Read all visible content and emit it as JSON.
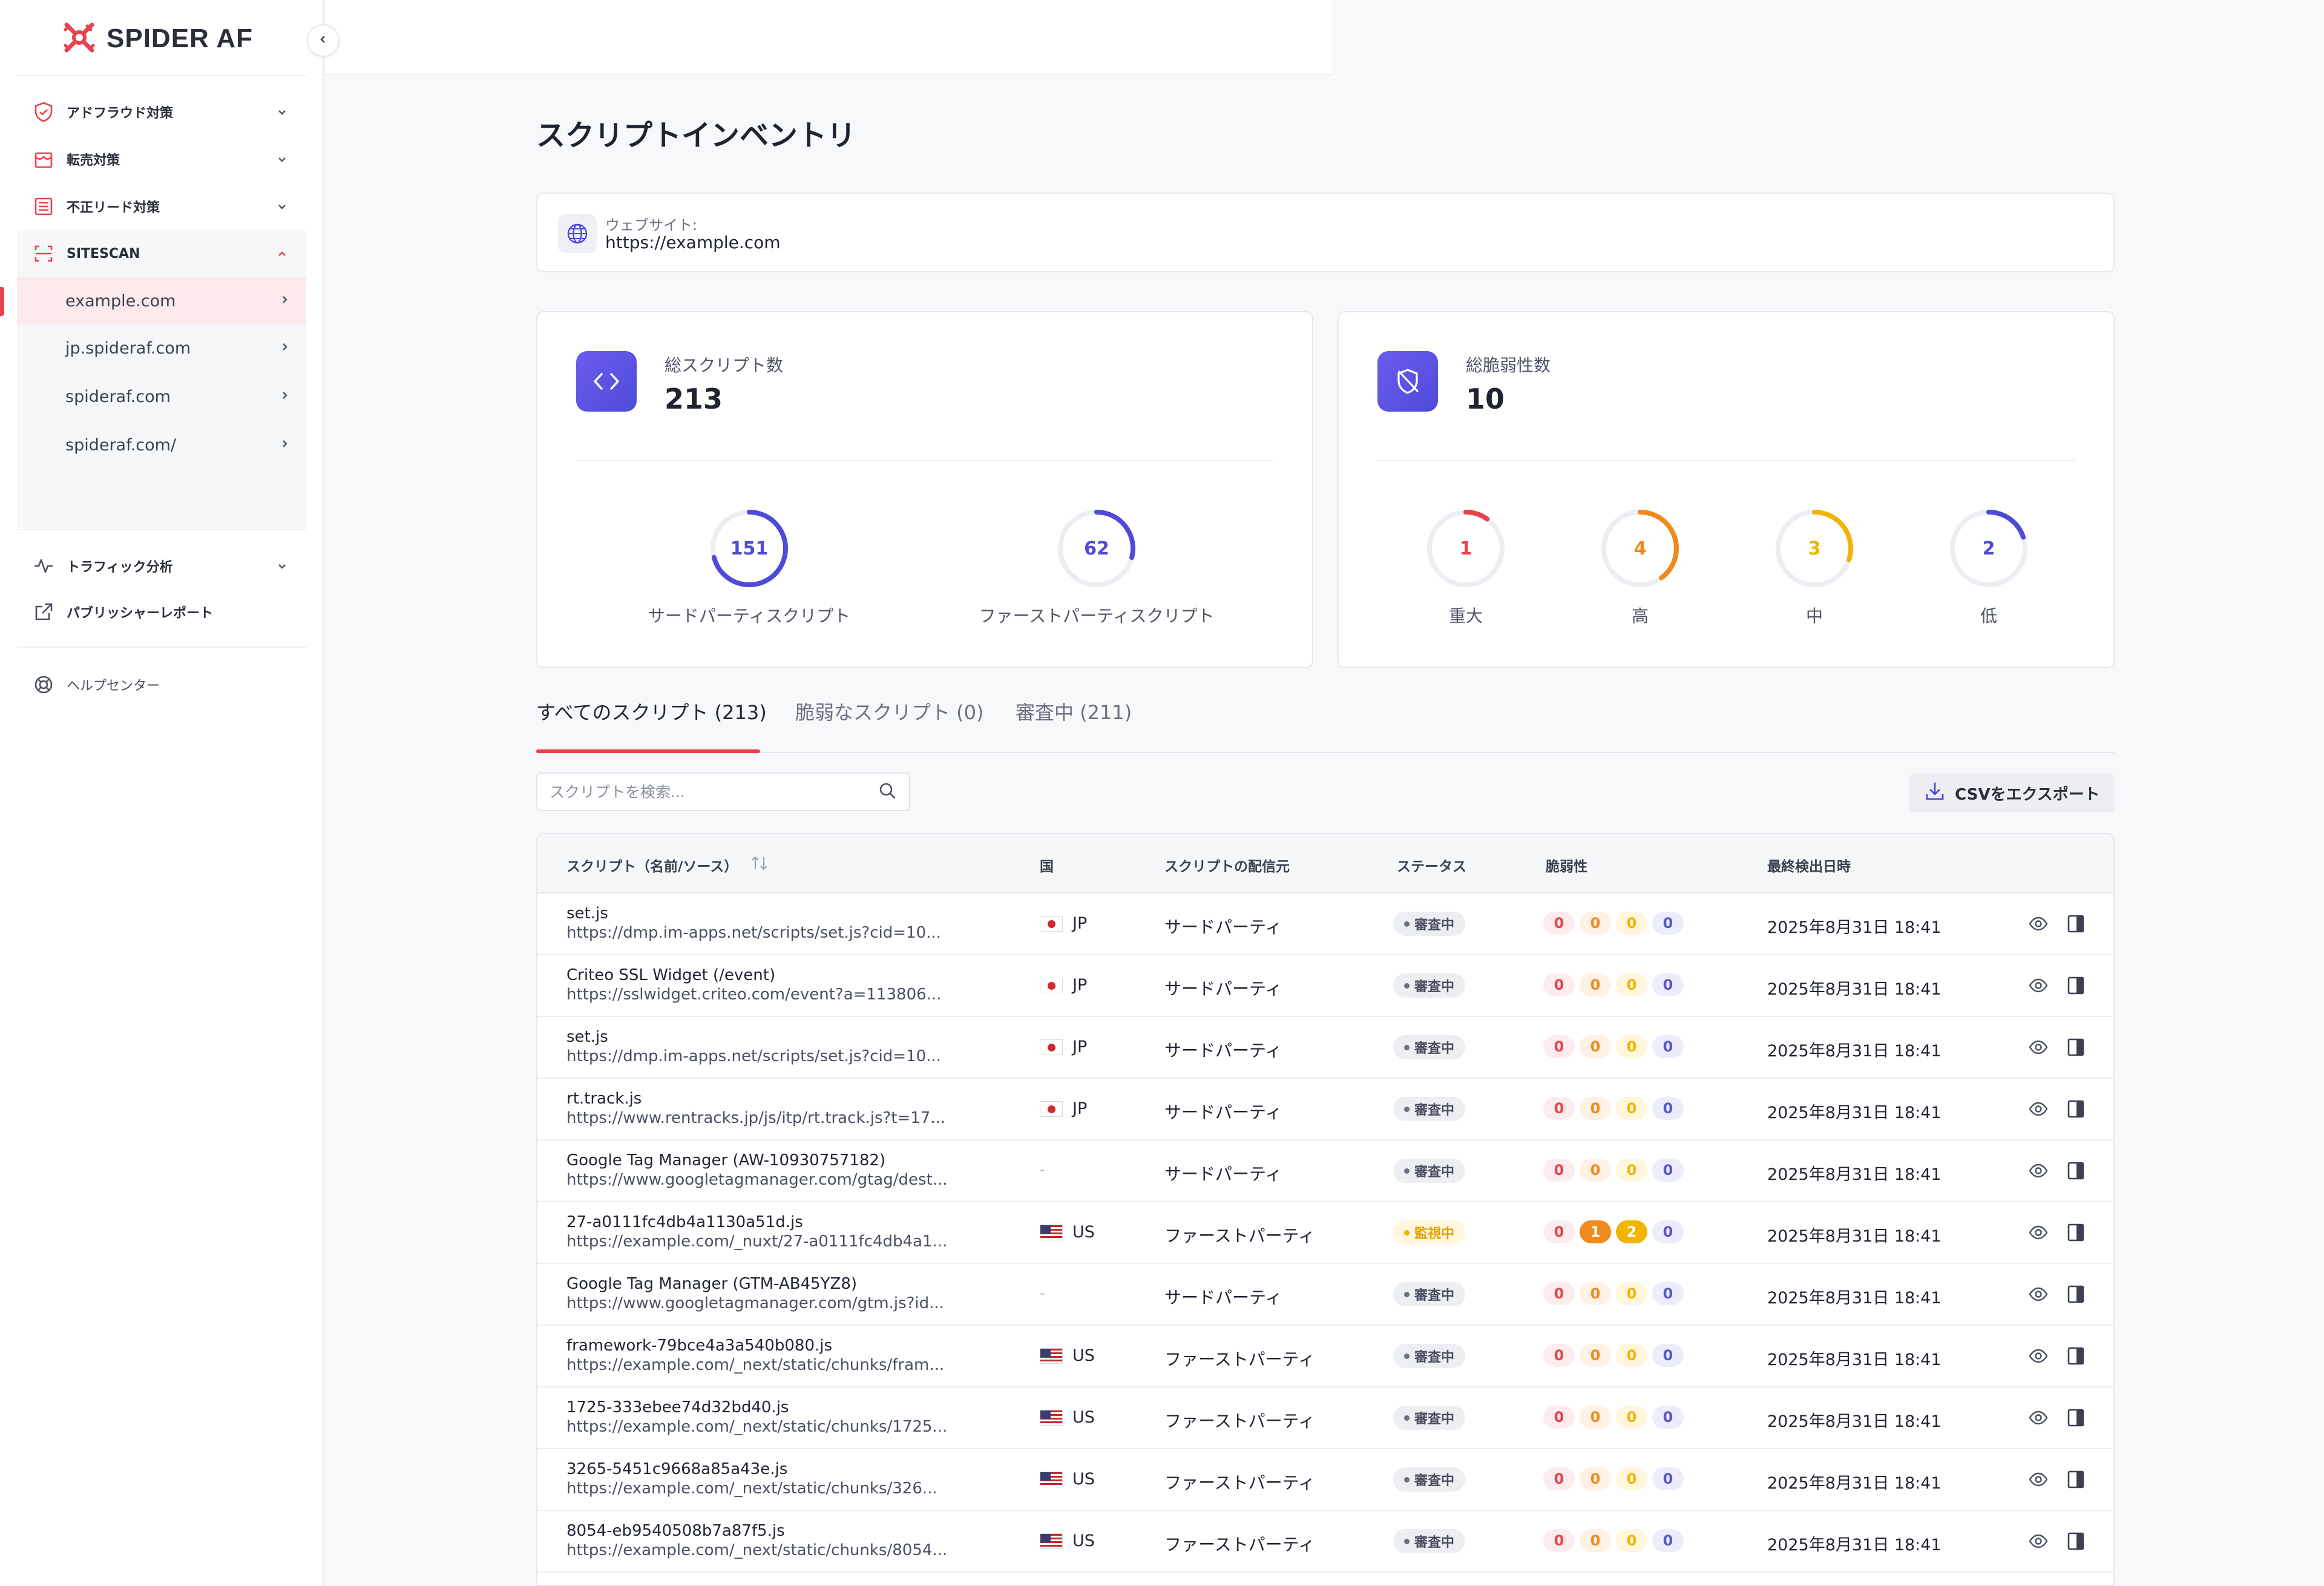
{
  "brand": {
    "name": "SPIDER AF",
    "color": "#e8434c"
  },
  "sidebar": {
    "groups": [
      {
        "label": "アドフラウド対策",
        "icon": "shield-icon"
      },
      {
        "label": "転売対策",
        "icon": "store-icon"
      },
      {
        "label": "不正リード対策",
        "icon": "form-icon"
      }
    ],
    "sitescan": {
      "label": "SITESCAN",
      "icon": "scan-icon",
      "items": [
        {
          "label": "example.com",
          "active": true
        },
        {
          "label": "jp.spideraf.com"
        },
        {
          "label": "spideraf.com"
        },
        {
          "label": "spideraf.com/"
        }
      ]
    },
    "traffic": {
      "label": "トラフィック分析",
      "icon": "activity-icon"
    },
    "publisher": {
      "label": "パブリッシャーレポート",
      "icon": "external-link-icon"
    },
    "help": {
      "label": "ヘルプセンター",
      "icon": "lifebuoy-icon"
    }
  },
  "page": {
    "title": "スクリプトインベントリ",
    "website_label": "ウェブサイト:",
    "website_url": "https://example.com"
  },
  "stats": {
    "scripts": {
      "label": "総スクリプト数",
      "value": "213",
      "breakdown": [
        {
          "value": "151",
          "label": "サードパーティスクリプト",
          "fraction": 0.71,
          "color": "#4f4bd8"
        },
        {
          "value": "62",
          "label": "ファーストパーティスクリプト",
          "fraction": 0.29,
          "color": "#4f4bd8"
        }
      ]
    },
    "vulnerabilities": {
      "label": "総脆弱性数",
      "value": "10",
      "breakdown": [
        {
          "value": "1",
          "label": "重大",
          "fraction": 0.1,
          "color": "#e8434c"
        },
        {
          "value": "4",
          "label": "高",
          "fraction": 0.4,
          "color": "#f08a1c"
        },
        {
          "value": "3",
          "label": "中",
          "fraction": 0.3,
          "color": "#f2b400"
        },
        {
          "value": "2",
          "label": "低",
          "fraction": 0.2,
          "color": "#4f4bd8"
        }
      ]
    }
  },
  "tabs": [
    {
      "label": "すべてのスクリプト (213)",
      "active": true
    },
    {
      "label": "脆弱なスクリプト (0)"
    },
    {
      "label": "審査中 (211)"
    }
  ],
  "search": {
    "placeholder": "スクリプトを検索...",
    "value": ""
  },
  "export_label": "CSVをエクスポート",
  "table": {
    "columns": [
      "スクリプト（名前/ソース）",
      "国",
      "スクリプトの配信元",
      "ステータス",
      "脆弱性",
      "最終検出日時"
    ],
    "rows": [
      {
        "name": "set.js",
        "url": "https://dmp.im-apps.net/scripts/set.js?cid=10...",
        "country": "JP",
        "source": "サードパーティ",
        "status": "審査中",
        "vuln": [
          "0",
          "0",
          "0",
          "0"
        ],
        "date": "2025年8月31日 18:41"
      },
      {
        "name": "Criteo SSL Widget (/event)",
        "url": "https://sslwidget.criteo.com/event?a=113806...",
        "country": "JP",
        "source": "サードパーティ",
        "status": "審査中",
        "vuln": [
          "0",
          "0",
          "0",
          "0"
        ],
        "date": "2025年8月31日 18:41"
      },
      {
        "name": "set.js",
        "url": "https://dmp.im-apps.net/scripts/set.js?cid=10...",
        "country": "JP",
        "source": "サードパーティ",
        "status": "審査中",
        "vuln": [
          "0",
          "0",
          "0",
          "0"
        ],
        "date": "2025年8月31日 18:41"
      },
      {
        "name": "rt.track.js",
        "url": "https://www.rentracks.jp/js/itp/rt.track.js?t=17...",
        "country": "JP",
        "source": "サードパーティ",
        "status": "審査中",
        "vuln": [
          "0",
          "0",
          "0",
          "0"
        ],
        "date": "2025年8月31日 18:41"
      },
      {
        "name": "Google Tag Manager (AW-10930757182)",
        "url": "https://www.googletagmanager.com/gtag/dest...",
        "country": "-",
        "source": "サードパーティ",
        "status": "審査中",
        "vuln": [
          "0",
          "0",
          "0",
          "0"
        ],
        "date": "2025年8月31日 18:41"
      },
      {
        "name": "27-a0111fc4db4a1130a51d.js",
        "url": "https://example.com/_nuxt/27-a0111fc4db4a1...",
        "country": "US",
        "source": "ファーストパーティ",
        "status": "監視中",
        "vuln": [
          "0",
          "1",
          "2",
          "0"
        ],
        "date": "2025年8月31日 18:41"
      },
      {
        "name": "Google Tag Manager (GTM-AB45YZ8)",
        "url": "https://www.googletagmanager.com/gtm.js?id...",
        "country": "-",
        "source": "サードパーティ",
        "status": "審査中",
        "vuln": [
          "0",
          "0",
          "0",
          "0"
        ],
        "date": "2025年8月31日 18:41"
      },
      {
        "name": "framework-79bce4a3a540b080.js",
        "url": "https://example.com/_next/static/chunks/fram...",
        "country": "US",
        "source": "ファーストパーティ",
        "status": "審査中",
        "vuln": [
          "0",
          "0",
          "0",
          "0"
        ],
        "date": "2025年8月31日 18:41"
      },
      {
        "name": "1725-333ebee74d32bd40.js",
        "url": "https://example.com/_next/static/chunks/1725...",
        "country": "US",
        "source": "ファーストパーティ",
        "status": "審査中",
        "vuln": [
          "0",
          "0",
          "0",
          "0"
        ],
        "date": "2025年8月31日 18:41"
      },
      {
        "name": "3265-5451c9668a85a43e.js",
        "url": "https://example.com/_next/static/chunks/326...",
        "country": "US",
        "source": "ファーストパーティ",
        "status": "審査中",
        "vuln": [
          "0",
          "0",
          "0",
          "0"
        ],
        "date": "2025年8月31日 18:41"
      },
      {
        "name": "8054-eb9540508b7a87f5.js",
        "url": "https://example.com/_next/static/chunks/8054...",
        "country": "US",
        "source": "ファーストパーティ",
        "status": "審査中",
        "vuln": [
          "0",
          "0",
          "0",
          "0"
        ],
        "date": "2025年8月31日 18:41"
      }
    ]
  }
}
